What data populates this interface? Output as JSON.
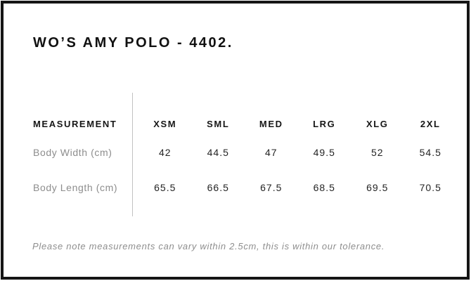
{
  "title": "WO’S AMY POLO - 4402.",
  "table": {
    "header_label": "MEASUREMENT",
    "sizes": [
      "XSM",
      "SML",
      "MED",
      "LRG",
      "XLG",
      "2XL"
    ],
    "rows": [
      {
        "label": "Body Width (cm)",
        "values": [
          "42",
          "44.5",
          "47",
          "49.5",
          "52",
          "54.5"
        ]
      },
      {
        "label": "Body Length (cm)",
        "values": [
          "65.5",
          "66.5",
          "67.5",
          "68.5",
          "69.5",
          "70.5"
        ]
      }
    ]
  },
  "note": "Please note measurements can vary within 2.5cm, this is within our tolerance.",
  "colors": {
    "border": "#151515",
    "divider": "#c2c2c2",
    "heading_text": "#111111",
    "value_text": "#242424",
    "muted_text": "#8d8d8d"
  }
}
